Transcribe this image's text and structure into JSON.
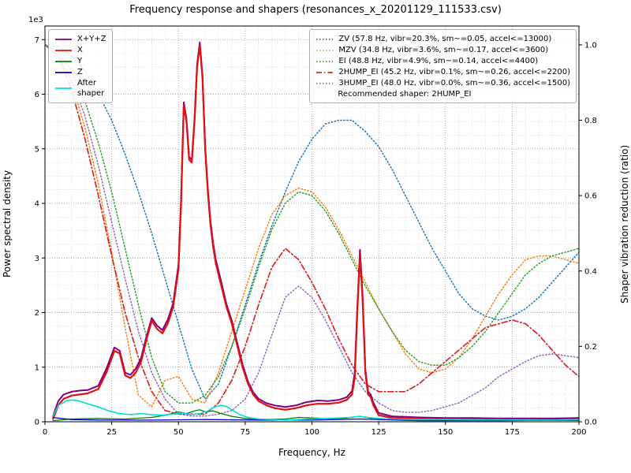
{
  "chart_data": {
    "type": "line",
    "title": "Frequency response and shapers (resonances_x_20201129_111533.csv)",
    "xlabel": "Frequency, Hz",
    "ylabel_left": "Power spectral density",
    "ylabel_right": "Shaper vibration reduction (ratio)",
    "y_left_offset": "1e3",
    "xlim": [
      0,
      200
    ],
    "ylim_left": [
      0,
      7.25
    ],
    "ylim_right": [
      0,
      1.05
    ],
    "xticks": [
      0,
      25,
      50,
      75,
      100,
      125,
      150,
      175,
      200
    ],
    "yticks_left": [
      0,
      1,
      2,
      3,
      4,
      5,
      6,
      7
    ],
    "yticks_right": [
      0.0,
      0.2,
      0.4,
      0.6,
      0.8,
      1.0
    ],
    "grid": "both-major-minor, dotted",
    "legend_left": [
      {
        "label": "X+Y+Z",
        "color": "#800080",
        "dash": "solid"
      },
      {
        "label": "X",
        "color": "#e01010",
        "dash": "solid"
      },
      {
        "label": "Y",
        "color": "#008000",
        "dash": "solid"
      },
      {
        "label": "Z",
        "color": "#0000cc",
        "dash": "solid"
      },
      {
        "label": "After\nshaper",
        "color": "#00dcdc",
        "dash": "solid"
      }
    ],
    "legend_right": [
      {
        "label": "ZV (57.8 Hz, vibr=20.3%, sm~=0.05, accel<=13000)",
        "color": "#1f77b4",
        "dash": "dotted"
      },
      {
        "label": "MZV (34.8 Hz, vibr=3.6%, sm~=0.17, accel<=3600)",
        "color": "#ff7f0e",
        "dash": "dotted"
      },
      {
        "label": "EI (48.8 Hz, vibr=4.9%, sm~=0.14, accel<=4400)",
        "color": "#2ca02c",
        "dash": "dotted"
      },
      {
        "label": "2HUMP_EI (45.2 Hz, vibr=0.1%, sm~=0.26, accel<=2200)",
        "color": "#d62728",
        "dash": "dashdot"
      },
      {
        "label": "3HUMP_EI (48.0 Hz, vibr=0.0%, sm~=0.36, accel<=1500)",
        "color": "#9467bd",
        "dash": "dotted"
      }
    ],
    "recommended": "Recommended shaper: 2HUMP_EI",
    "series": [
      {
        "name": "ZV",
        "axis": "right",
        "color": "#1f77b4",
        "dash": "dotted",
        "width": 1.5,
        "x": [
          0,
          5,
          10,
          15,
          20,
          25,
          30,
          35,
          40,
          45,
          50,
          55,
          60,
          65,
          70,
          75,
          80,
          85,
          90,
          95,
          100,
          105,
          110,
          115,
          120,
          125,
          130,
          135,
          140,
          145,
          150,
          155,
          160,
          165,
          170,
          175,
          180,
          185,
          190,
          195,
          200
        ],
        "y": [
          1.0,
          0.995,
          0.97,
          0.93,
          0.87,
          0.8,
          0.71,
          0.61,
          0.5,
          0.38,
          0.26,
          0.14,
          0.06,
          0.1,
          0.2,
          0.31,
          0.42,
          0.52,
          0.61,
          0.69,
          0.75,
          0.79,
          0.8,
          0.8,
          0.77,
          0.73,
          0.67,
          0.6,
          0.53,
          0.46,
          0.4,
          0.34,
          0.3,
          0.28,
          0.27,
          0.28,
          0.3,
          0.33,
          0.37,
          0.41,
          0.45
        ]
      },
      {
        "name": "MZV",
        "axis": "right",
        "color": "#ff7f0e",
        "dash": "dotted",
        "width": 1.5,
        "x": [
          0,
          5,
          10,
          15,
          20,
          25,
          30,
          35,
          40,
          45,
          50,
          55,
          60,
          65,
          70,
          75,
          80,
          85,
          90,
          95,
          100,
          105,
          110,
          115,
          120,
          125,
          130,
          135,
          140,
          145,
          150,
          155,
          160,
          165,
          170,
          175,
          180,
          185,
          190,
          195,
          200
        ],
        "y": [
          1.0,
          0.97,
          0.9,
          0.78,
          0.63,
          0.45,
          0.25,
          0.07,
          0.04,
          0.11,
          0.12,
          0.06,
          0.05,
          0.13,
          0.24,
          0.35,
          0.46,
          0.55,
          0.6,
          0.62,
          0.61,
          0.57,
          0.51,
          0.44,
          0.37,
          0.3,
          0.24,
          0.18,
          0.14,
          0.13,
          0.14,
          0.17,
          0.22,
          0.28,
          0.34,
          0.39,
          0.43,
          0.44,
          0.44,
          0.43,
          0.42
        ]
      },
      {
        "name": "EI",
        "axis": "right",
        "color": "#2ca02c",
        "dash": "dotted",
        "width": 1.5,
        "x": [
          0,
          5,
          10,
          15,
          20,
          25,
          30,
          35,
          40,
          45,
          50,
          55,
          60,
          65,
          70,
          75,
          80,
          85,
          90,
          95,
          100,
          105,
          110,
          115,
          120,
          125,
          130,
          135,
          140,
          145,
          150,
          155,
          160,
          165,
          170,
          175,
          180,
          185,
          190,
          195,
          200
        ],
        "y": [
          1.0,
          0.98,
          0.93,
          0.85,
          0.74,
          0.61,
          0.46,
          0.31,
          0.17,
          0.08,
          0.05,
          0.05,
          0.07,
          0.12,
          0.2,
          0.3,
          0.41,
          0.51,
          0.58,
          0.61,
          0.6,
          0.56,
          0.5,
          0.43,
          0.36,
          0.3,
          0.24,
          0.19,
          0.16,
          0.15,
          0.15,
          0.17,
          0.2,
          0.24,
          0.29,
          0.34,
          0.39,
          0.42,
          0.44,
          0.45,
          0.46
        ]
      },
      {
        "name": "2HUMP_EI",
        "axis": "right",
        "color": "#d62728",
        "dash": "dashdot",
        "width": 1.7,
        "x": [
          0,
          5,
          10,
          15,
          20,
          25,
          30,
          35,
          40,
          45,
          50,
          55,
          60,
          65,
          70,
          75,
          80,
          85,
          90,
          95,
          100,
          105,
          110,
          115,
          120,
          125,
          130,
          135,
          140,
          145,
          150,
          155,
          160,
          165,
          170,
          175,
          180,
          185,
          190,
          195,
          200
        ],
        "y": [
          1.0,
          0.97,
          0.88,
          0.75,
          0.6,
          0.44,
          0.29,
          0.17,
          0.08,
          0.03,
          0.02,
          0.02,
          0.02,
          0.05,
          0.11,
          0.2,
          0.31,
          0.41,
          0.46,
          0.43,
          0.37,
          0.3,
          0.22,
          0.15,
          0.1,
          0.08,
          0.08,
          0.08,
          0.1,
          0.13,
          0.16,
          0.19,
          0.22,
          0.25,
          0.26,
          0.27,
          0.26,
          0.23,
          0.19,
          0.15,
          0.12
        ]
      },
      {
        "name": "3HUMP_EI",
        "axis": "right",
        "color": "#9467bd",
        "dash": "dotted",
        "width": 1.5,
        "x": [
          0,
          5,
          10,
          15,
          20,
          25,
          30,
          35,
          40,
          45,
          50,
          55,
          60,
          65,
          70,
          75,
          80,
          85,
          90,
          95,
          100,
          105,
          110,
          115,
          120,
          125,
          130,
          135,
          140,
          145,
          150,
          155,
          160,
          165,
          170,
          175,
          180,
          185,
          190,
          195,
          200
        ],
        "y": [
          1.0,
          0.97,
          0.91,
          0.81,
          0.68,
          0.53,
          0.38,
          0.24,
          0.13,
          0.06,
          0.02,
          0.015,
          0.015,
          0.02,
          0.03,
          0.06,
          0.13,
          0.23,
          0.33,
          0.36,
          0.33,
          0.27,
          0.2,
          0.13,
          0.08,
          0.05,
          0.03,
          0.025,
          0.025,
          0.03,
          0.04,
          0.05,
          0.07,
          0.09,
          0.12,
          0.14,
          0.16,
          0.175,
          0.18,
          0.175,
          0.17
        ]
      },
      {
        "name": "X+Y+Z",
        "axis": "left",
        "color": "#800080",
        "dash": "solid",
        "width": 2,
        "x": [
          3,
          5,
          7,
          10,
          13,
          16,
          20,
          23,
          26,
          28,
          30,
          32,
          34,
          36,
          38,
          40,
          42,
          44,
          46,
          48,
          50,
          51,
          52,
          53,
          54,
          55,
          56,
          57,
          58,
          59,
          60,
          61,
          62,
          63,
          64,
          65,
          66,
          68,
          70,
          72,
          74,
          76,
          78,
          80,
          83,
          86,
          90,
          94,
          98,
          102,
          106,
          110,
          113,
          115,
          116,
          117,
          118,
          119,
          120,
          121,
          122,
          123,
          125,
          130,
          135,
          140,
          150,
          160,
          170,
          180,
          190,
          200
        ],
        "y": [
          0.1,
          0.38,
          0.5,
          0.55,
          0.57,
          0.58,
          0.66,
          0.97,
          1.36,
          1.3,
          0.9,
          0.86,
          0.97,
          1.17,
          1.56,
          1.9,
          1.76,
          1.68,
          1.87,
          2.17,
          2.88,
          4.1,
          5.85,
          5.55,
          4.85,
          4.8,
          5.55,
          6.55,
          6.95,
          6.35,
          5.05,
          4.27,
          3.67,
          3.27,
          2.97,
          2.77,
          2.57,
          2.15,
          1.85,
          1.45,
          1.05,
          0.74,
          0.54,
          0.42,
          0.34,
          0.3,
          0.27,
          0.3,
          0.36,
          0.39,
          0.38,
          0.4,
          0.45,
          0.56,
          0.9,
          2.1,
          3.15,
          2.3,
          0.96,
          0.55,
          0.5,
          0.35,
          0.16,
          0.1,
          0.09,
          0.08,
          0.07,
          0.07,
          0.06,
          0.06,
          0.06,
          0.07
        ]
      },
      {
        "name": "X",
        "axis": "left",
        "color": "#e01010",
        "dash": "solid",
        "width": 2.2,
        "x": [
          3,
          5,
          7,
          10,
          13,
          16,
          20,
          23,
          26,
          28,
          30,
          32,
          34,
          36,
          38,
          40,
          42,
          44,
          46,
          48,
          50,
          51,
          52,
          53,
          54,
          55,
          56,
          57,
          58,
          59,
          60,
          61,
          62,
          63,
          64,
          65,
          66,
          68,
          70,
          72,
          74,
          76,
          78,
          80,
          83,
          86,
          90,
          94,
          98,
          102,
          106,
          110,
          113,
          115,
          116,
          117,
          118,
          119,
          120,
          121,
          122,
          123,
          125,
          130,
          135,
          140,
          150,
          160,
          170,
          180,
          190,
          200
        ],
        "y": [
          0.05,
          0.3,
          0.42,
          0.48,
          0.5,
          0.52,
          0.6,
          0.9,
          1.3,
          1.25,
          0.85,
          0.8,
          0.9,
          1.1,
          1.5,
          1.85,
          1.7,
          1.62,
          1.8,
          2.1,
          2.8,
          4.0,
          5.8,
          5.5,
          4.8,
          4.75,
          5.5,
          6.5,
          6.9,
          6.3,
          5.0,
          4.2,
          3.6,
          3.2,
          2.9,
          2.7,
          2.5,
          2.1,
          1.8,
          1.4,
          1.0,
          0.7,
          0.5,
          0.38,
          0.3,
          0.25,
          0.22,
          0.25,
          0.3,
          0.33,
          0.33,
          0.35,
          0.4,
          0.5,
          0.8,
          2.0,
          3.05,
          2.2,
          0.9,
          0.5,
          0.45,
          0.3,
          0.12,
          0.07,
          0.06,
          0.05,
          0.04,
          0.04,
          0.03,
          0.03,
          0.03,
          0.03
        ]
      },
      {
        "name": "Y",
        "axis": "left",
        "color": "#008000",
        "dash": "solid",
        "width": 1.3,
        "x": [
          3,
          10,
          20,
          30,
          40,
          45,
          50,
          53,
          56,
          58,
          60,
          63,
          66,
          70,
          75,
          80,
          90,
          95,
          100,
          110,
          118,
          125,
          140,
          160,
          180,
          200
        ],
        "y": [
          0.02,
          0.05,
          0.06,
          0.05,
          0.08,
          0.12,
          0.18,
          0.15,
          0.2,
          0.22,
          0.18,
          0.2,
          0.15,
          0.1,
          0.06,
          0.04,
          0.05,
          0.08,
          0.07,
          0.05,
          0.1,
          0.04,
          0.03,
          0.03,
          0.03,
          0.05
        ]
      },
      {
        "name": "Z",
        "axis": "left",
        "color": "#0000cc",
        "dash": "solid",
        "width": 1.3,
        "x": [
          3,
          6,
          10,
          20,
          40,
          60,
          80,
          100,
          118,
          140,
          170,
          200
        ],
        "y": [
          0.08,
          0.06,
          0.04,
          0.03,
          0.03,
          0.04,
          0.03,
          0.03,
          0.05,
          0.02,
          0.02,
          0.03
        ]
      },
      {
        "name": "After shaper",
        "axis": "left",
        "color": "#00dcdc",
        "dash": "solid",
        "width": 1.6,
        "x": [
          3,
          5,
          8,
          10,
          13,
          16,
          20,
          24,
          28,
          32,
          36,
          40,
          44,
          48,
          52,
          55,
          58,
          61,
          64,
          66,
          68,
          70,
          73,
          76,
          80,
          85,
          90,
          95,
          100,
          105,
          110,
          114,
          118,
          121,
          125,
          130,
          140,
          150,
          160,
          170,
          180,
          190,
          200
        ],
        "y": [
          0.1,
          0.3,
          0.38,
          0.4,
          0.38,
          0.33,
          0.27,
          0.2,
          0.15,
          0.13,
          0.15,
          0.13,
          0.12,
          0.14,
          0.16,
          0.13,
          0.15,
          0.2,
          0.28,
          0.3,
          0.28,
          0.22,
          0.13,
          0.08,
          0.05,
          0.04,
          0.03,
          0.04,
          0.05,
          0.06,
          0.07,
          0.08,
          0.1,
          0.08,
          0.06,
          0.05,
          0.04,
          0.04,
          0.035,
          0.035,
          0.03,
          0.03,
          0.04
        ]
      }
    ]
  }
}
